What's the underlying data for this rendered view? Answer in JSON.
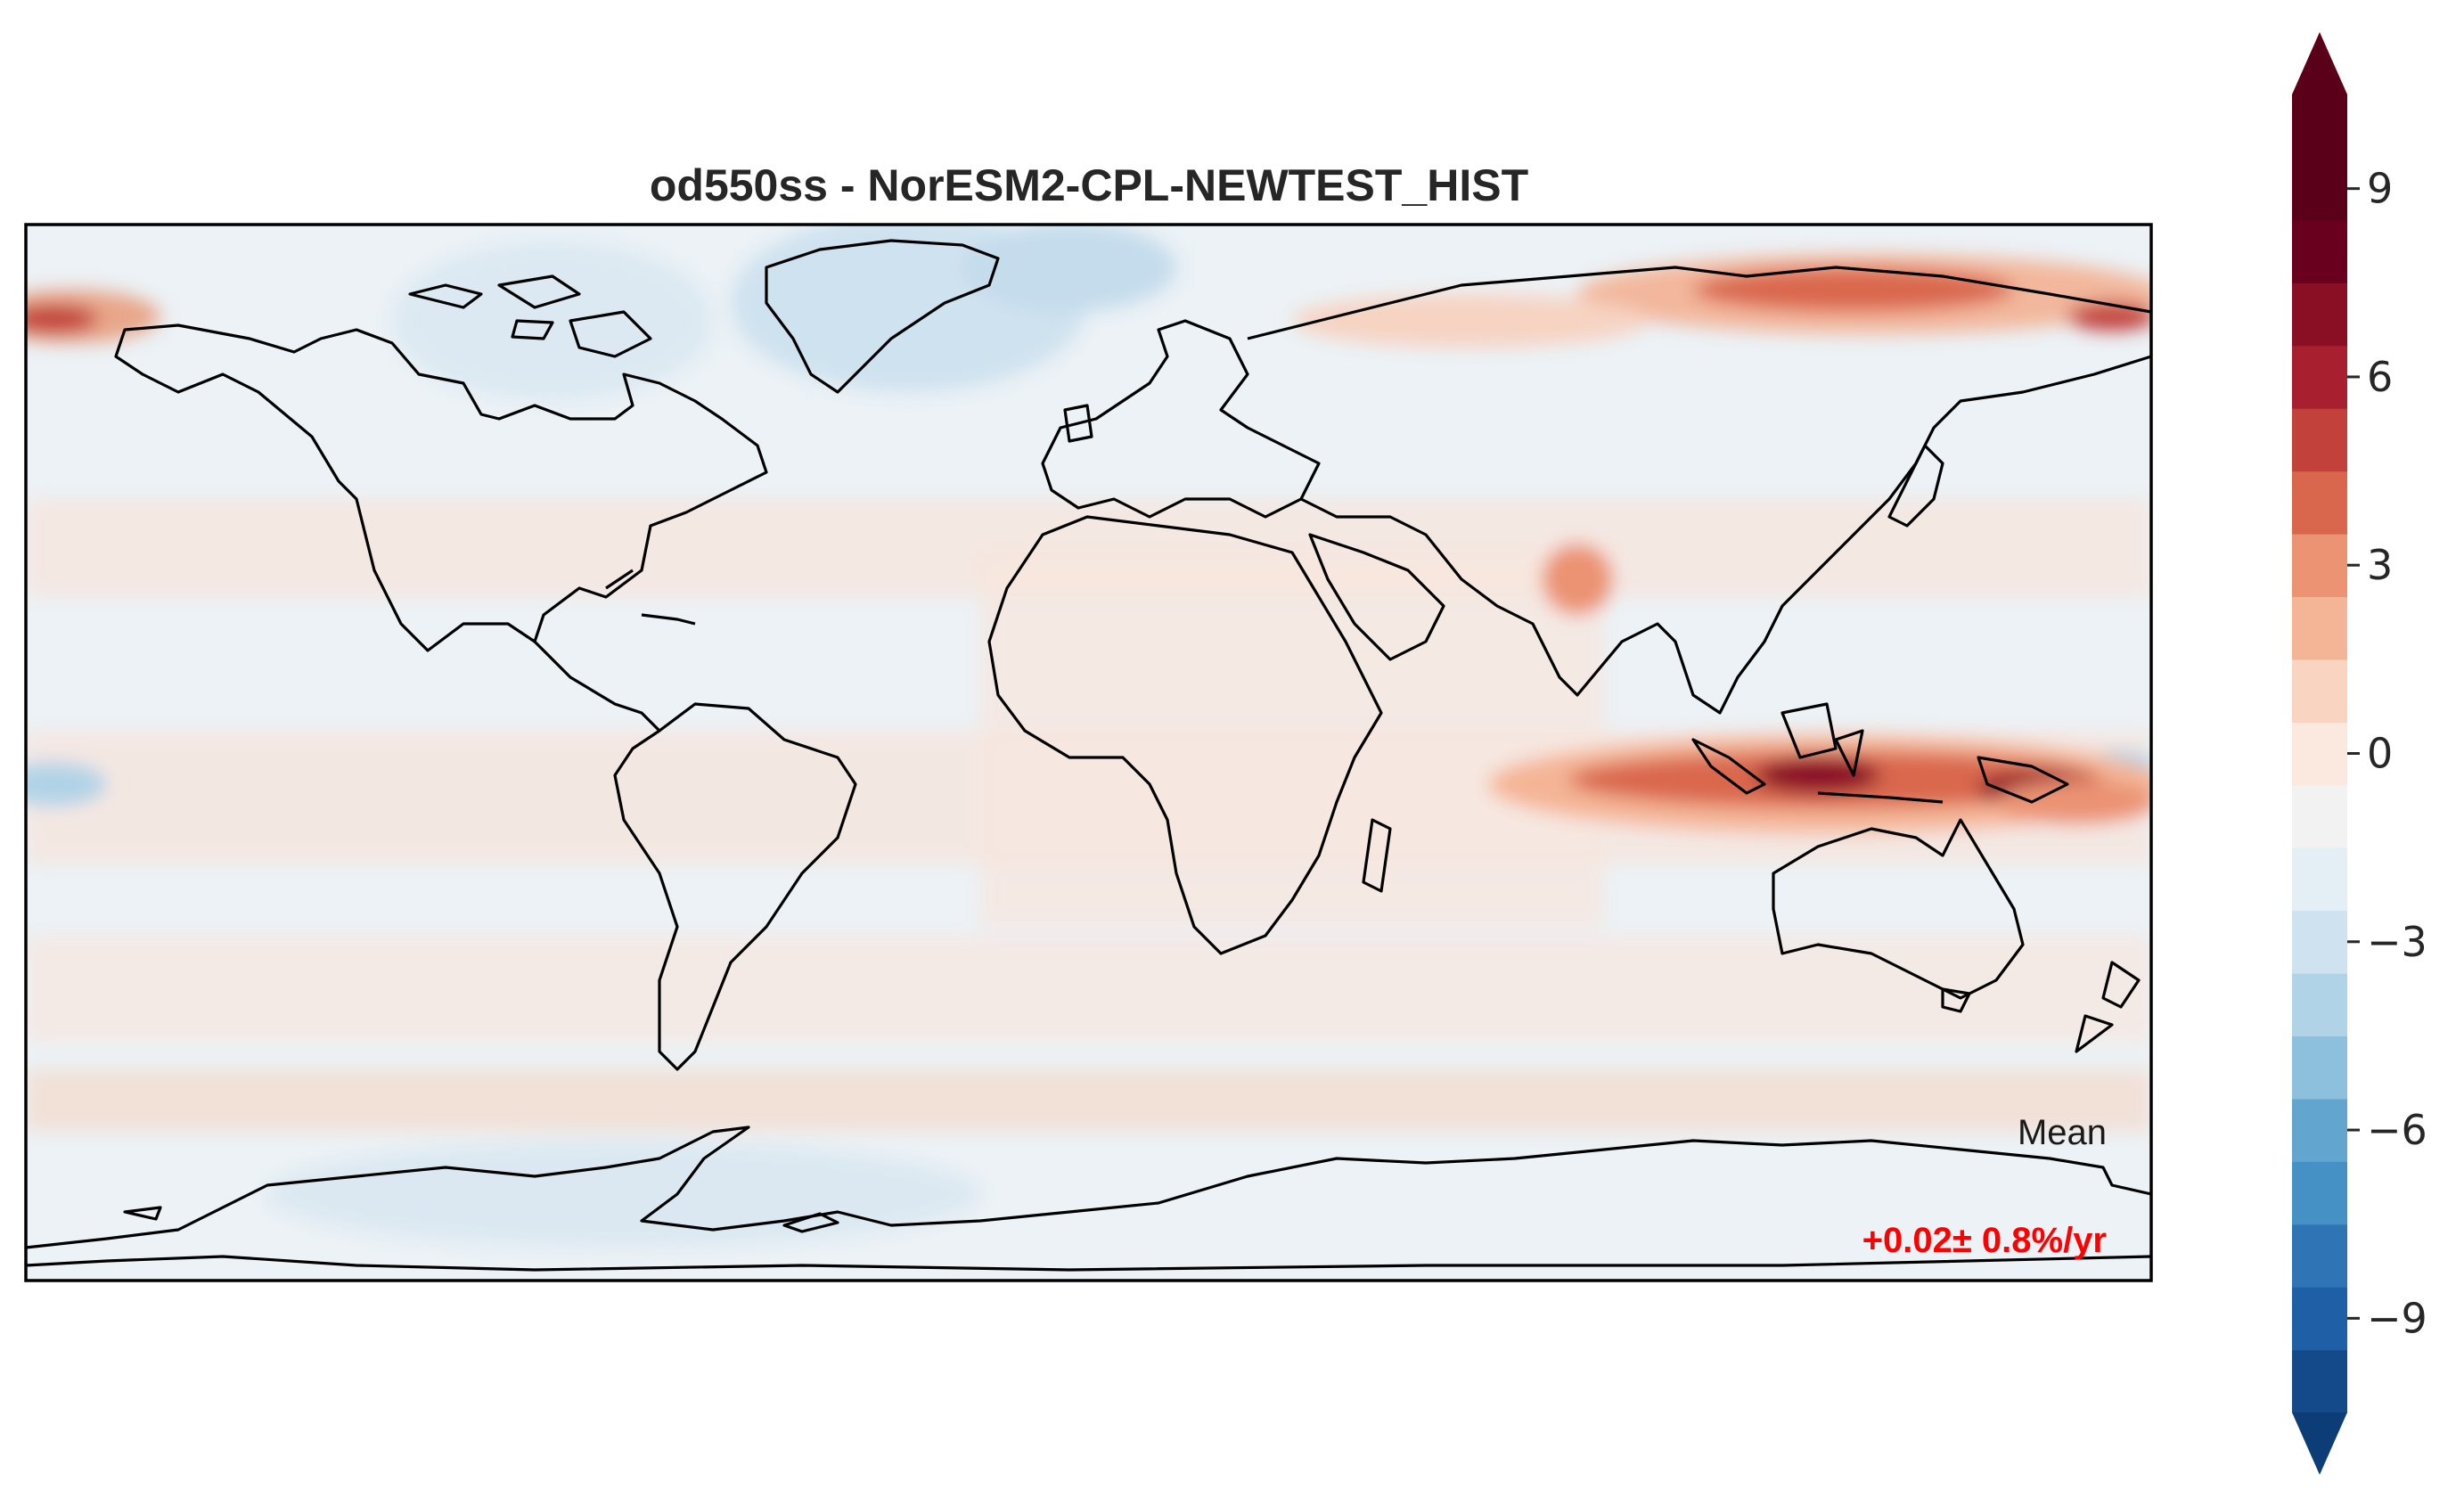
{
  "title": "od550ss - NorESM2-CPL-NEWTEST_HIST",
  "mean": {
    "label": "Mean",
    "value": "+0.02± 0.8%/yr",
    "color": "#ff0000"
  },
  "colorbar": {
    "min": -10.5,
    "max": 10.5,
    "levels": [
      -10.5,
      -9.5,
      -8.5,
      -7.5,
      -6.5,
      -5.5,
      -4.5,
      -3.5,
      -2.5,
      -1.5,
      -0.5,
      0.5,
      1.5,
      2.5,
      3.5,
      4.5,
      5.5,
      6.5,
      7.5,
      8.5,
      9.5,
      10.5
    ],
    "colors": [
      "#0c3d76",
      "#154a8a",
      "#1f5fa6",
      "#2f75b5",
      "#4590c4",
      "#62a5cf",
      "#8dc0dd",
      "#b0d3e7",
      "#cfe2ef",
      "#e3eef5",
      "#f2f2f2",
      "#fbe8df",
      "#f9d4c0",
      "#f4b596",
      "#eb9373",
      "#d9674d",
      "#c2413a",
      "#a8202f",
      "#8a0f25",
      "#69001e",
      "#5a0019"
    ],
    "extend": "both",
    "ticks": [
      -9,
      -6,
      -3,
      0,
      3,
      6,
      9
    ],
    "tick_labels": [
      "−9",
      "−6",
      "−3",
      "0",
      "3",
      "6",
      "9"
    ]
  },
  "map": {
    "projection": "PlateCarree",
    "extent": [
      -180,
      180,
      -90,
      90
    ],
    "background_color": "#ecf2f6",
    "coastline_color": "#000000"
  }
}
